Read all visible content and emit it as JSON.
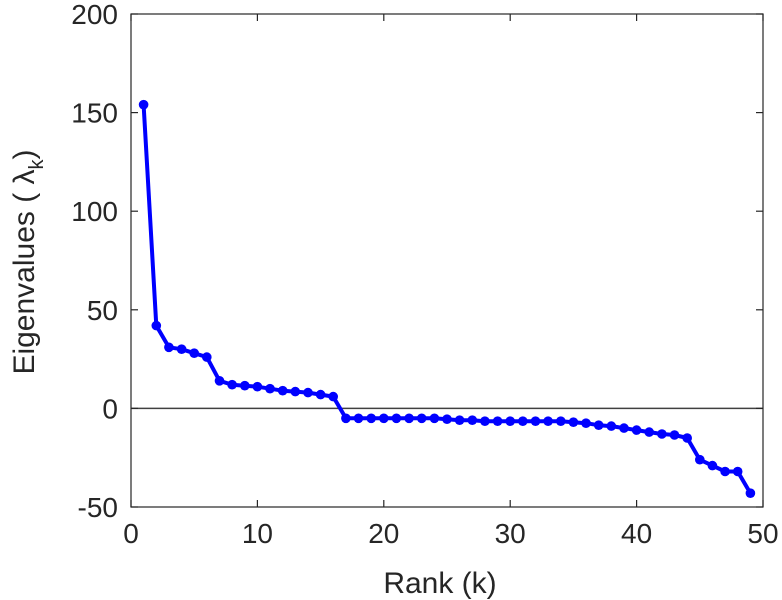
{
  "chart_data": {
    "type": "line",
    "title": "",
    "xlabel": "Rank (k)",
    "ylabel": "Eigenvalues (  λk)",
    "ylabel_parts": {
      "prefix": "Eigenvalues (  ",
      "symbol": "λ",
      "subscript": "k",
      "suffix": ")"
    },
    "xlim": [
      0,
      50
    ],
    "ylim": [
      -50,
      200
    ],
    "xticks": [
      0,
      10,
      20,
      30,
      40,
      50
    ],
    "yticks": [
      -50,
      0,
      50,
      100,
      150,
      200
    ],
    "grid": false,
    "zero_line": true,
    "colors": {
      "series": "#0000ff",
      "axes": "#262626",
      "zero_line": "#404040"
    },
    "series": [
      {
        "x": [
          1,
          2,
          3,
          4,
          5,
          6,
          7,
          8,
          9,
          10,
          11,
          12,
          13,
          14,
          15,
          16,
          17,
          18,
          19,
          20,
          21,
          22,
          23,
          24,
          25,
          26,
          27,
          28,
          29,
          30,
          31,
          32,
          33,
          34,
          35,
          36,
          37,
          38,
          39,
          40,
          41,
          42,
          43,
          44,
          45,
          46,
          47,
          48,
          49
        ],
        "values": [
          154,
          42,
          31,
          30,
          28,
          26,
          14,
          12,
          11.5,
          11,
          10,
          9,
          8.5,
          8,
          7,
          6,
          -5,
          -5,
          -5,
          -5,
          -5,
          -5,
          -5,
          -5,
          -5.5,
          -6,
          -6,
          -6.5,
          -6.5,
          -6.5,
          -6.5,
          -6.5,
          -6.5,
          -6.5,
          -7,
          -7.5,
          -8.5,
          -9,
          -10,
          -11,
          -12,
          -13,
          -13.5,
          -15,
          -26,
          -29,
          -32,
          -32,
          -43
        ]
      }
    ]
  }
}
